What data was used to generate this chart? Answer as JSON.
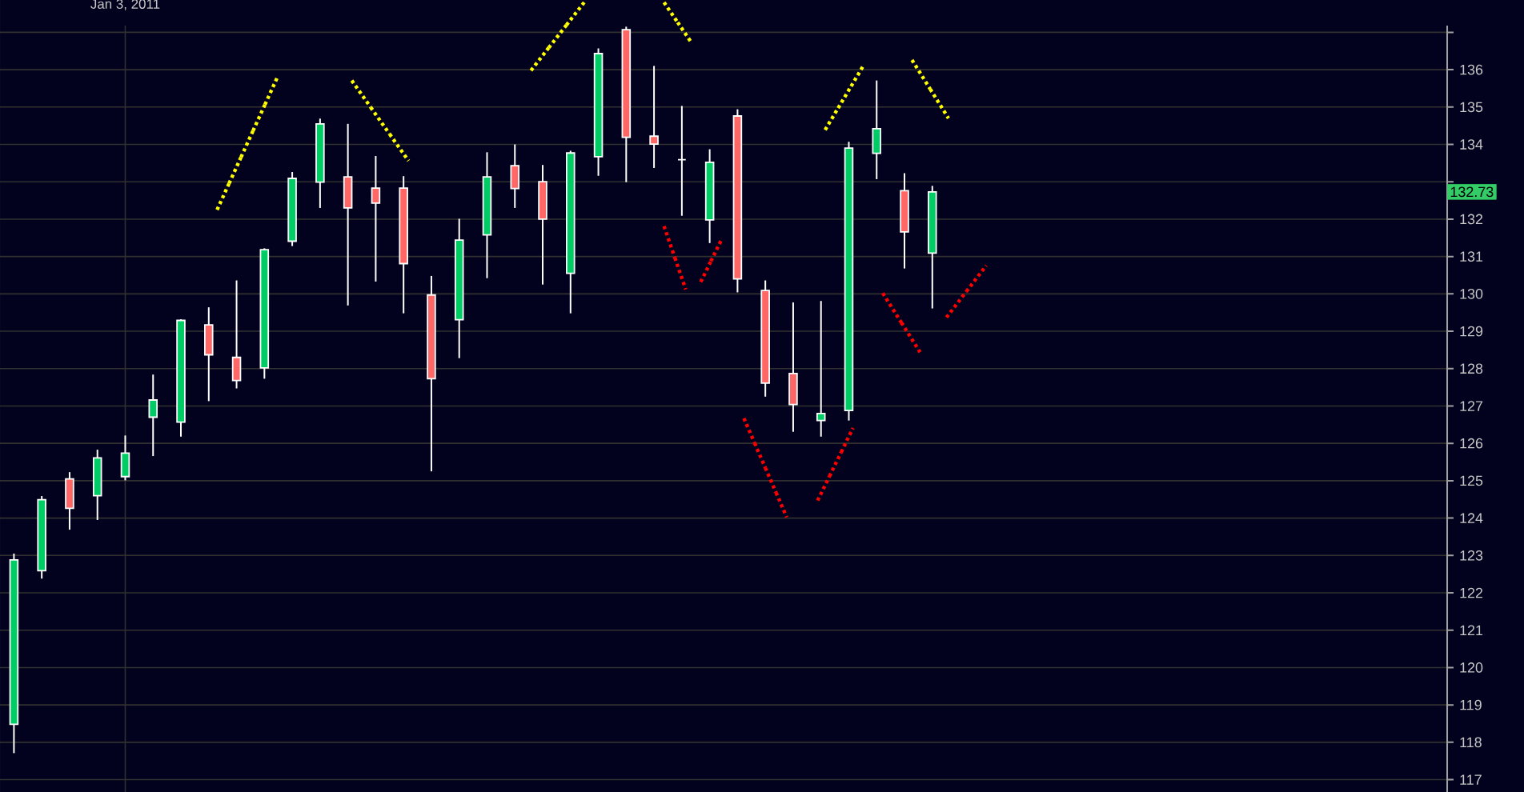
{
  "chart_data": {
    "type": "candlestick",
    "categories": [
      null,
      null,
      null,
      null,
      "Jan 3, 2011",
      null,
      null,
      null,
      null,
      null,
      null,
      null,
      null,
      null,
      null,
      null,
      null,
      null,
      null,
      null,
      null,
      null,
      null,
      null,
      null,
      null,
      null,
      null,
      null,
      null,
      null,
      null,
      null,
      null,
      null,
      null,
      null,
      null,
      null,
      null,
      null,
      null,
      null,
      null,
      null,
      null,
      null,
      null,
      null,
      null,
      null,
      null
    ],
    "ohlc": [
      [
        118.48,
        123.05,
        117.71,
        122.88
      ],
      [
        122.59,
        124.59,
        122.38,
        124.49
      ],
      [
        125.05,
        125.23,
        123.69,
        124.26
      ],
      [
        124.6,
        125.83,
        123.95,
        125.61
      ],
      [
        125.11,
        126.21,
        125.01,
        125.74
      ],
      [
        126.7,
        127.84,
        125.66,
        127.16
      ],
      [
        126.57,
        129.32,
        126.18,
        129.29
      ],
      [
        129.17,
        129.64,
        127.13,
        128.37
      ],
      [
        128.3,
        130.36,
        127.47,
        127.68
      ],
      [
        128.02,
        131.22,
        127.73,
        131.18
      ],
      [
        131.41,
        133.26,
        131.28,
        133.09
      ],
      [
        132.99,
        134.69,
        132.3,
        134.55
      ],
      [
        133.13,
        134.55,
        129.69,
        132.3
      ],
      [
        132.83,
        133.69,
        130.33,
        132.43
      ],
      [
        132.83,
        133.15,
        129.48,
        130.81
      ],
      [
        129.97,
        130.48,
        125.25,
        127.73
      ],
      [
        129.31,
        132.01,
        128.28,
        131.44
      ],
      [
        131.58,
        133.79,
        130.42,
        133.13
      ],
      [
        133.43,
        134.0,
        132.3,
        132.82
      ],
      [
        133.0,
        133.45,
        130.25,
        132.0
      ],
      [
        130.55,
        133.83,
        129.48,
        133.77
      ],
      [
        133.67,
        136.57,
        133.16,
        136.43
      ],
      [
        137.07,
        137.15,
        132.99,
        134.19
      ],
      [
        134.22,
        136.1,
        133.37,
        134.01
      ],
      [
        133.59,
        135.03,
        132.09,
        133.59
      ],
      [
        131.98,
        133.87,
        131.36,
        133.52
      ],
      [
        134.76,
        134.94,
        130.04,
        130.4
      ],
      [
        130.09,
        130.36,
        127.25,
        127.61
      ],
      [
        127.87,
        129.77,
        126.31,
        127.04
      ],
      [
        126.61,
        129.81,
        126.18,
        126.8
      ],
      [
        126.88,
        134.07,
        126.61,
        133.9
      ],
      [
        133.76,
        135.71,
        133.07,
        134.42
      ],
      [
        132.76,
        133.23,
        130.68,
        131.66
      ],
      [
        131.09,
        132.89,
        129.61,
        132.73
      ],
      null,
      null,
      null,
      null,
      null,
      null,
      null,
      null,
      null,
      null,
      null,
      null,
      null,
      null,
      null,
      null,
      null,
      null
    ],
    "colors": [
      "#00cc66",
      "#00cc66",
      "#ff6666",
      "#00cc66",
      "#00cc66",
      "#00cc66",
      "#00cc66",
      "#ff6666",
      "#ff6666",
      "#00cc66",
      "#00cc66",
      "#00cc66",
      "#ff6666",
      "#ff6666",
      "#ff6666",
      "#ff6666",
      "#00cc66",
      "#00cc66",
      "#ff6666",
      "#ff6666",
      "#00cc66",
      "#00cc66",
      "#ff6666",
      "#ff6666",
      "#ffffff",
      "#00cc66",
      "#ff6666",
      "#ff6666",
      "#ff6666",
      "#00cc66",
      "#00cc66",
      "#00cc66",
      "#ff6666",
      "#00cc66",
      null,
      null,
      null,
      null,
      null,
      null,
      null,
      null,
      null,
      null,
      null,
      null,
      null,
      null,
      null,
      null,
      null,
      null
    ],
    "ylim": [
      116.67,
      137.18
    ],
    "yticks": [
      117,
      118,
      119,
      120,
      121,
      122,
      123,
      124,
      125,
      126,
      127,
      128,
      129,
      130,
      131,
      132,
      {
        "value": 133,
        "label": null
      },
      134,
      135,
      136,
      {
        "value": 137,
        "label": null
      }
    ],
    "grid": true,
    "annotations": [
      {
        "text": "132.73",
        "y": 132.73
      }
    ]
  }
}
